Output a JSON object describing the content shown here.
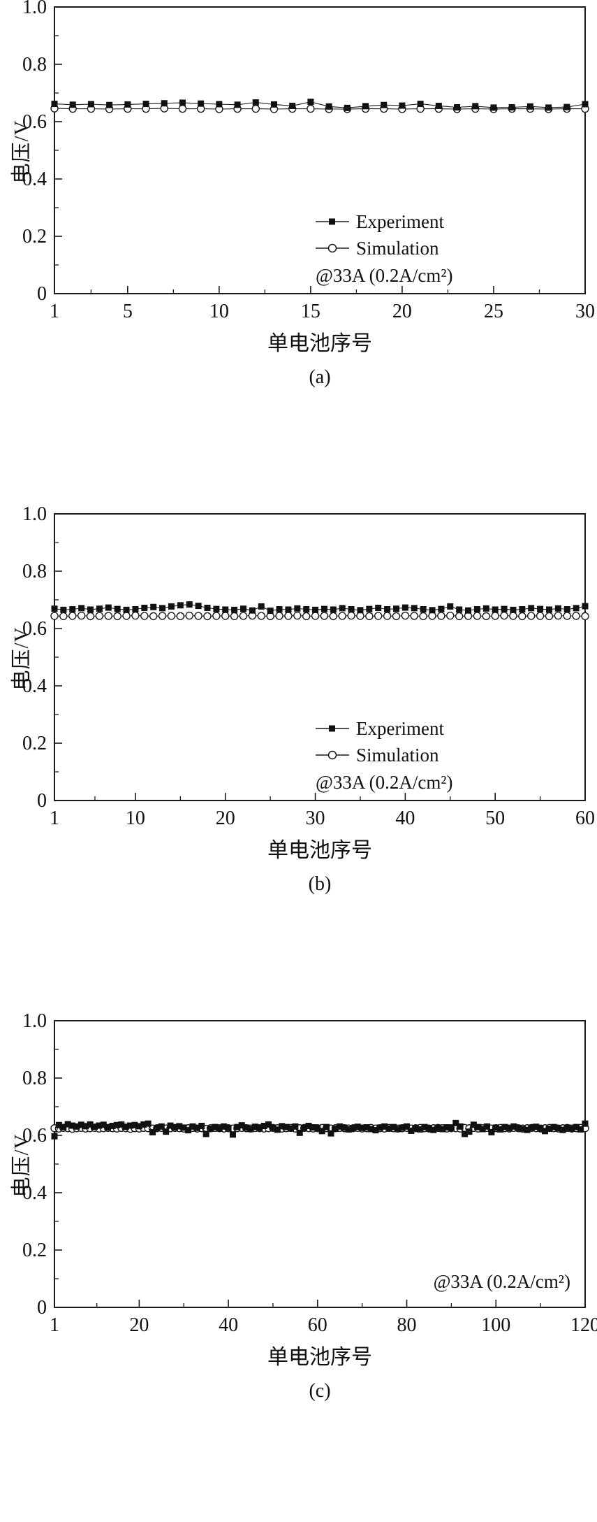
{
  "chart_data": [
    {
      "type": "line",
      "caption": "(a)",
      "title": "",
      "xlabel": "单电池序号",
      "ylabel": "电压/V",
      "annotation": "@33A (0.2A/cm²)",
      "legend_visible": true,
      "legend_position": "lower right",
      "grid": false,
      "xlim": [
        1,
        30
      ],
      "ylim": [
        0,
        1.0
      ],
      "xticks": [
        1,
        5,
        10,
        15,
        20,
        25,
        30
      ],
      "xtick_labels": [
        "1",
        "5",
        "10",
        "15",
        "20",
        "25",
        "30"
      ],
      "yticks": [
        0,
        0.2,
        0.4,
        0.6,
        0.8,
        1.0
      ],
      "ytick_labels": [
        "0",
        "0.2",
        "0.4",
        "0.6",
        "0.8",
        "1.0"
      ],
      "n_points": 30,
      "series": [
        {
          "name": "Experiment",
          "marker": "filled-square",
          "line": "solid",
          "color": "#1a1a1a",
          "x_start": 1,
          "x_step": 1,
          "y": [
            0.662,
            0.659,
            0.661,
            0.658,
            0.66,
            0.662,
            0.664,
            0.666,
            0.663,
            0.661,
            0.659,
            0.667,
            0.66,
            0.655,
            0.669,
            0.653,
            0.648,
            0.654,
            0.658,
            0.656,
            0.662,
            0.655,
            0.65,
            0.654,
            0.649,
            0.65,
            0.653,
            0.649,
            0.651,
            0.661
          ]
        },
        {
          "name": "Simulation",
          "marker": "open-circle",
          "line": "solid",
          "color": "#1a1a1a",
          "x_start": 1,
          "x_step": 1,
          "y": [
            0.646,
            0.645,
            0.645,
            0.644,
            0.645,
            0.645,
            0.646,
            0.645,
            0.645,
            0.644,
            0.645,
            0.645,
            0.644,
            0.645,
            0.645,
            0.644,
            0.644,
            0.645,
            0.645,
            0.644,
            0.645,
            0.645,
            0.644,
            0.645,
            0.644,
            0.645,
            0.645,
            0.644,
            0.645,
            0.645
          ]
        }
      ]
    },
    {
      "type": "line",
      "caption": "(b)",
      "title": "",
      "xlabel": "单电池序号",
      "ylabel": "电压/V",
      "annotation": "@33A (0.2A/cm²)",
      "legend_visible": true,
      "legend_position": "lower right",
      "grid": false,
      "xlim": [
        1,
        60
      ],
      "ylim": [
        0,
        1.0
      ],
      "xticks": [
        1,
        10,
        20,
        30,
        40,
        50,
        60
      ],
      "xtick_labels": [
        "1",
        "10",
        "20",
        "30",
        "40",
        "50",
        "60"
      ],
      "yticks": [
        0,
        0.2,
        0.4,
        0.6,
        0.8,
        1.0
      ],
      "ytick_labels": [
        "0",
        "0.2",
        "0.4",
        "0.6",
        "0.8",
        "1.0"
      ],
      "n_points": 60,
      "series": [
        {
          "name": "Experiment",
          "marker": "filled-square",
          "line": "solid",
          "color": "#1a1a1a",
          "x_start": 1,
          "x_step": 1,
          "y": [
            0.669,
            0.665,
            0.667,
            0.671,
            0.666,
            0.669,
            0.673,
            0.668,
            0.665,
            0.667,
            0.672,
            0.675,
            0.671,
            0.677,
            0.681,
            0.684,
            0.679,
            0.672,
            0.668,
            0.666,
            0.665,
            0.669,
            0.663,
            0.677,
            0.662,
            0.667,
            0.666,
            0.67,
            0.667,
            0.665,
            0.668,
            0.666,
            0.671,
            0.667,
            0.664,
            0.668,
            0.672,
            0.667,
            0.669,
            0.673,
            0.671,
            0.667,
            0.664,
            0.668,
            0.677,
            0.666,
            0.663,
            0.667,
            0.67,
            0.666,
            0.668,
            0.665,
            0.667,
            0.671,
            0.668,
            0.666,
            0.67,
            0.667,
            0.671,
            0.678
          ]
        },
        {
          "name": "Simulation",
          "marker": "open-circle",
          "line": "solid",
          "color": "#1a1a1a",
          "x_start": 1,
          "x_step": 1,
          "y": [
            0.644,
            0.643,
            0.644,
            0.645,
            0.643,
            0.644,
            0.644,
            0.643,
            0.644,
            0.645,
            0.644,
            0.643,
            0.644,
            0.644,
            0.643,
            0.645,
            0.644,
            0.643,
            0.644,
            0.644,
            0.643,
            0.644,
            0.645,
            0.644,
            0.643,
            0.644,
            0.644,
            0.645,
            0.643,
            0.644,
            0.644,
            0.643,
            0.644,
            0.645,
            0.644,
            0.643,
            0.644,
            0.644,
            0.643,
            0.645,
            0.644,
            0.643,
            0.644,
            0.644,
            0.645,
            0.643,
            0.644,
            0.644,
            0.643,
            0.644,
            0.645,
            0.644,
            0.643,
            0.644,
            0.644,
            0.643,
            0.645,
            0.644,
            0.644,
            0.643
          ]
        }
      ]
    },
    {
      "type": "line",
      "caption": "(c)",
      "title": "",
      "xlabel": "单电池序号",
      "ylabel": "电压/V",
      "annotation": "@33A (0.2A/cm²)",
      "legend_visible": false,
      "legend_position": "lower right",
      "grid": false,
      "xlim": [
        1,
        120
      ],
      "ylim": [
        0,
        1.0
      ],
      "xticks": [
        1,
        20,
        40,
        60,
        80,
        100,
        120
      ],
      "xtick_labels": [
        "1",
        "20",
        "40",
        "60",
        "80",
        "100",
        "120"
      ],
      "yticks": [
        0,
        0.2,
        0.4,
        0.6,
        0.8,
        1.0
      ],
      "ytick_labels": [
        "0",
        "0.2",
        "0.4",
        "0.6",
        "0.8",
        "1.0"
      ],
      "n_points": 120,
      "series": [
        {
          "name": "Experiment",
          "marker": "filled-square",
          "line": "solid",
          "color": "#1a1a1a",
          "x_start": 1,
          "x_step": 1,
          "y": [
            0.597,
            0.636,
            0.629,
            0.639,
            0.634,
            0.631,
            0.637,
            0.632,
            0.638,
            0.63,
            0.634,
            0.637,
            0.628,
            0.633,
            0.636,
            0.638,
            0.63,
            0.634,
            0.636,
            0.632,
            0.638,
            0.641,
            0.611,
            0.626,
            0.631,
            0.613,
            0.634,
            0.628,
            0.632,
            0.627,
            0.618,
            0.631,
            0.626,
            0.633,
            0.605,
            0.623,
            0.629,
            0.624,
            0.631,
            0.626,
            0.603,
            0.629,
            0.635,
            0.627,
            0.622,
            0.63,
            0.626,
            0.633,
            0.638,
            0.627,
            0.62,
            0.632,
            0.629,
            0.624,
            0.631,
            0.609,
            0.626,
            0.633,
            0.628,
            0.625,
            0.615,
            0.629,
            0.607,
            0.623,
            0.631,
            0.627,
            0.621,
            0.625,
            0.63,
            0.626,
            0.628,
            0.622,
            0.618,
            0.627,
            0.631,
            0.624,
            0.629,
            0.622,
            0.627,
            0.631,
            0.616,
            0.625,
            0.621,
            0.629,
            0.624,
            0.619,
            0.627,
            0.622,
            0.628,
            0.625,
            0.643,
            0.631,
            0.605,
            0.613,
            0.637,
            0.629,
            0.622,
            0.631,
            0.611,
            0.627,
            0.621,
            0.629,
            0.625,
            0.631,
            0.626,
            0.622,
            0.619,
            0.627,
            0.63,
            0.624,
            0.615,
            0.623,
            0.629,
            0.625,
            0.619,
            0.627,
            0.623,
            0.629,
            0.621,
            0.641
          ]
        },
        {
          "name": "Simulation",
          "marker": "open-circle",
          "line": "solid",
          "color": "#1a1a1a",
          "x_start": 1,
          "x_step": 1,
          "y": [
            0.625,
            0.624,
            0.626,
            0.625,
            0.623,
            0.625,
            0.626,
            0.624,
            0.625,
            0.626,
            0.624,
            0.625,
            0.626,
            0.625,
            0.624,
            0.626,
            0.625,
            0.623,
            0.625,
            0.624,
            0.626,
            0.625,
            0.624,
            0.625,
            0.626,
            0.624,
            0.625,
            0.626,
            0.625,
            0.624,
            0.625,
            0.626,
            0.624,
            0.625,
            0.623,
            0.625,
            0.626,
            0.625,
            0.624,
            0.625,
            0.624,
            0.625,
            0.626,
            0.625,
            0.624,
            0.626,
            0.625,
            0.624,
            0.625,
            0.626,
            0.625,
            0.624,
            0.625,
            0.626,
            0.624,
            0.625,
            0.626,
            0.625,
            0.624,
            0.625,
            0.626,
            0.625,
            0.624,
            0.625,
            0.626,
            0.625,
            0.624,
            0.625,
            0.626,
            0.624,
            0.625,
            0.626,
            0.624,
            0.625,
            0.624,
            0.626,
            0.625,
            0.624,
            0.625,
            0.626,
            0.624,
            0.625,
            0.626,
            0.625,
            0.624,
            0.625,
            0.626,
            0.625,
            0.624,
            0.625,
            0.625,
            0.624,
            0.626,
            0.625,
            0.626,
            0.624,
            0.625,
            0.626,
            0.624,
            0.625,
            0.626,
            0.625,
            0.624,
            0.626,
            0.625,
            0.624,
            0.625,
            0.626,
            0.625,
            0.624,
            0.625,
            0.626,
            0.625,
            0.624,
            0.625,
            0.626,
            0.624,
            0.625,
            0.626,
            0.625
          ]
        }
      ]
    }
  ],
  "style": {
    "axis_color": "#1a1a1a",
    "marker_fill": "#111111",
    "background": "#ffffff"
  }
}
